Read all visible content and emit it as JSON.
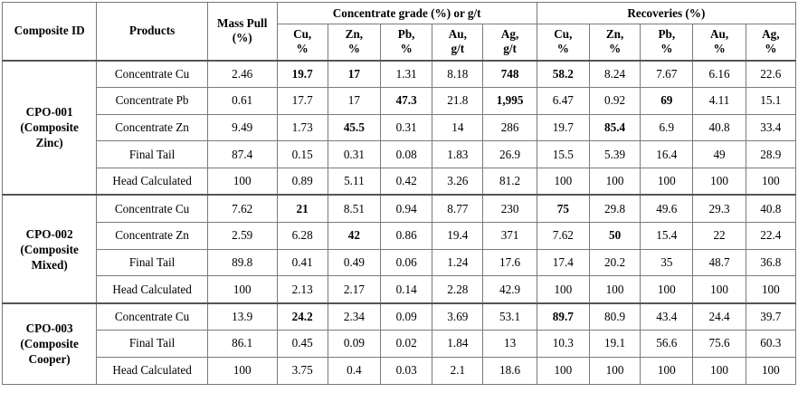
{
  "header": {
    "composite_id": "Composite ID",
    "products": "Products",
    "mass_pull": "Mass Pull",
    "mass_pull_unit": "(%)",
    "grade_group": "Concentrate grade (%) or g/t",
    "recoveries_group": "Recoveries (%)",
    "grade_cols": [
      {
        "el": "Cu,",
        "unit": "%"
      },
      {
        "el": "Zn,",
        "unit": "%"
      },
      {
        "el": "Pb,",
        "unit": "%"
      },
      {
        "el": "Au,",
        "unit": "g/t"
      },
      {
        "el": "Ag,",
        "unit": "g/t"
      }
    ],
    "recovery_cols": [
      {
        "el": "Cu,",
        "unit": "%"
      },
      {
        "el": "Zn,",
        "unit": "%"
      },
      {
        "el": "Pb,",
        "unit": "%"
      },
      {
        "el": "Au,",
        "unit": "%"
      },
      {
        "el": "Ag,",
        "unit": "%"
      }
    ]
  },
  "groups": [
    {
      "id_lines": [
        "CPO-001",
        "(Composite",
        "Zinc)"
      ],
      "rows": [
        {
          "product": "Concentrate Cu",
          "cells": [
            "2.46",
            "19.7",
            "17",
            "1.31",
            "8.18",
            "748",
            "58.2",
            "8.24",
            "7.67",
            "6.16",
            "22.6"
          ],
          "bold": [
            1,
            2,
            5,
            6
          ]
        },
        {
          "product": "Concentrate Pb",
          "cells": [
            "0.61",
            "17.7",
            "17",
            "47.3",
            "21.8",
            "1,995",
            "6.47",
            "0.92",
            "69",
            "4.11",
            "15.1"
          ],
          "bold": [
            3,
            5,
            8
          ]
        },
        {
          "product": "Concentrate Zn",
          "cells": [
            "9.49",
            "1.73",
            "45.5",
            "0.31",
            "14",
            "286",
            "19.7",
            "85.4",
            "6.9",
            "40.8",
            "33.4"
          ],
          "bold": [
            2,
            7
          ]
        },
        {
          "product": "Final Tail",
          "cells": [
            "87.4",
            "0.15",
            "0.31",
            "0.08",
            "1.83",
            "26.9",
            "15.5",
            "5.39",
            "16.4",
            "49",
            "28.9"
          ],
          "bold": []
        },
        {
          "product": "Head Calculated",
          "cells": [
            "100",
            "0.89",
            "5.11",
            "0.42",
            "3.26",
            "81.2",
            "100",
            "100",
            "100",
            "100",
            "100"
          ],
          "bold": []
        }
      ]
    },
    {
      "id_lines": [
        "CPO-002",
        "(Composite",
        "Mixed)"
      ],
      "rows": [
        {
          "product": "Concentrate Cu",
          "cells": [
            "7.62",
            "21",
            "8.51",
            "0.94",
            "8.77",
            "230",
            "75",
            "29.8",
            "49.6",
            "29.3",
            "40.8"
          ],
          "bold": [
            1,
            6
          ]
        },
        {
          "product": "Concentrate Zn",
          "cells": [
            "2.59",
            "6.28",
            "42",
            "0.86",
            "19.4",
            "371",
            "7.62",
            "50",
            "15.4",
            "22",
            "22.4"
          ],
          "bold": [
            2,
            7
          ]
        },
        {
          "product": "Final Tail",
          "cells": [
            "89.8",
            "0.41",
            "0.49",
            "0.06",
            "1.24",
            "17.6",
            "17.4",
            "20.2",
            "35",
            "48.7",
            "36.8"
          ],
          "bold": []
        },
        {
          "product": "Head Calculated",
          "cells": [
            "100",
            "2.13",
            "2.17",
            "0.14",
            "2.28",
            "42.9",
            "100",
            "100",
            "100",
            "100",
            "100"
          ],
          "bold": []
        }
      ]
    },
    {
      "id_lines": [
        "CPO-003",
        "(Composite",
        "Cooper)"
      ],
      "rows": [
        {
          "product": "Concentrate Cu",
          "cells": [
            "13.9",
            "24.2",
            "2.34",
            "0.09",
            "3.69",
            "53.1",
            "89.7",
            "80.9",
            "43.4",
            "24.4",
            "39.7"
          ],
          "bold": [
            1,
            6
          ]
        },
        {
          "product": "Final Tail",
          "cells": [
            "86.1",
            "0.45",
            "0.09",
            "0.02",
            "1.84",
            "13",
            "10.3",
            "19.1",
            "56.6",
            "75.6",
            "60.3"
          ],
          "bold": []
        },
        {
          "product": "Head Calculated",
          "cells": [
            "100",
            "3.75",
            "0.4",
            "0.03",
            "2.1",
            "18.6",
            "100",
            "100",
            "100",
            "100",
            "100"
          ],
          "bold": []
        }
      ]
    }
  ]
}
